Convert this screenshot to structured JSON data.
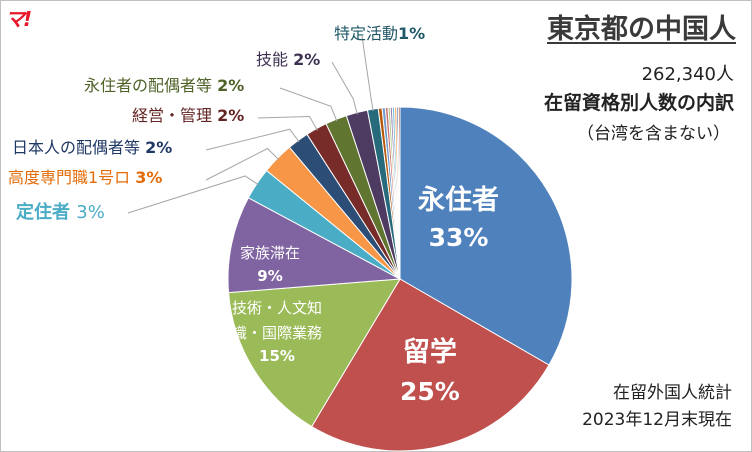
{
  "logo": "マ!",
  "chart_data": {
    "type": "pie",
    "title": "東京都の中国人",
    "total_label": "262,340人",
    "subtitle": "在留資格別人数の内訳",
    "note": "（台湾を含まない）",
    "source_line1": "在留外国人統計",
    "source_line2": "2023年12月末現在",
    "slices": [
      {
        "name": "永住者",
        "pct_label": "33%",
        "value": 33,
        "color": "#4f81bd"
      },
      {
        "name": "留学",
        "pct_label": "25%",
        "value": 25,
        "color": "#c0504d"
      },
      {
        "name": "技術・人文知識・国際業務",
        "name_line1": "技術・人文知",
        "name_line2": "識・国際業務",
        "pct_label": "15%",
        "value": 15,
        "color": "#9bbb59"
      },
      {
        "name": "家族滞在",
        "pct_label": "9%",
        "value": 9,
        "color": "#8064a2"
      },
      {
        "name": "定住者",
        "pct_label": "3%",
        "value": 3,
        "color": "#4bacc6"
      },
      {
        "name": "高度専門職1号ロ",
        "pct_label": "3%",
        "value": 3,
        "color": "#f79646"
      },
      {
        "name": "日本人の配偶者等",
        "pct_label": "2%",
        "value": 2,
        "color": "#2c4d75"
      },
      {
        "name": "経営・管理",
        "pct_label": "2%",
        "value": 2,
        "color": "#772c2a"
      },
      {
        "name": "永住者の配偶者等",
        "pct_label": "2%",
        "value": 2,
        "color": "#5f7530"
      },
      {
        "name": "技能",
        "pct_label": "2%",
        "value": 2,
        "color": "#4d3b62"
      },
      {
        "name": "特定活動",
        "pct_label": "1%",
        "value": 1,
        "color": "#276a7c"
      },
      {
        "name": "",
        "pct_label": "",
        "value": 0.35,
        "color": "#b65708"
      },
      {
        "name": "",
        "pct_label": "",
        "value": 0.3,
        "color": "#729aca"
      },
      {
        "name": "",
        "pct_label": "",
        "value": 0.25,
        "color": "#cd7371"
      },
      {
        "name": "",
        "pct_label": "",
        "value": 0.2,
        "color": "#aec680"
      },
      {
        "name": "",
        "pct_label": "",
        "value": 0.2,
        "color": "#9983b5"
      },
      {
        "name": "",
        "pct_label": "",
        "value": 0.2,
        "color": "#6fbdd1"
      },
      {
        "name": "",
        "pct_label": "",
        "value": 0.2,
        "color": "#f9ab6b"
      },
      {
        "name": "",
        "pct_label": "",
        "value": 0.15,
        "color": "#3a679c"
      },
      {
        "name": "",
        "pct_label": "",
        "value": 0.15,
        "color": "#9f3b38"
      }
    ]
  }
}
